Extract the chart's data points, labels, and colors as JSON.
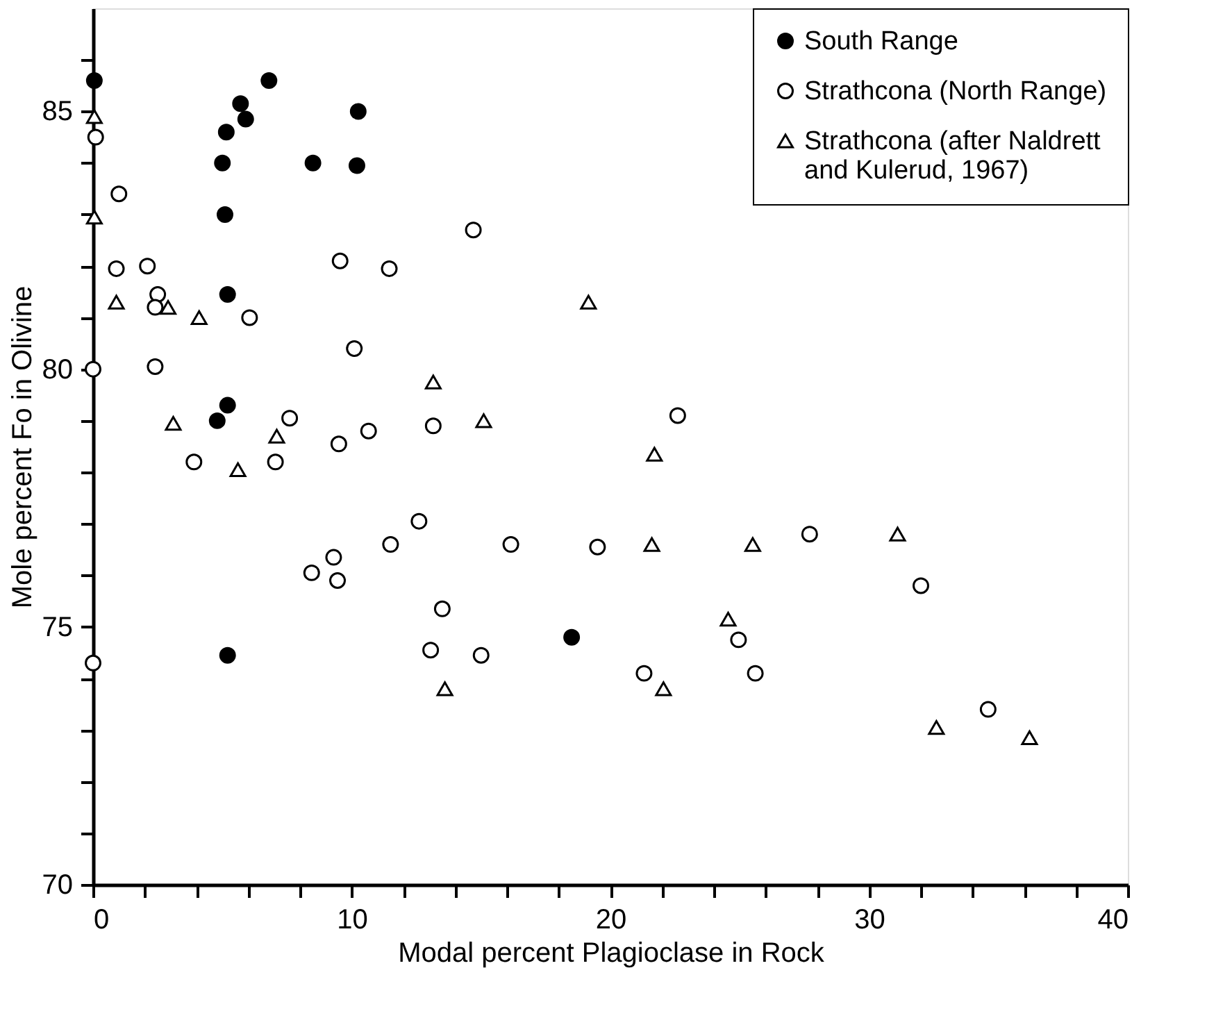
{
  "chart_data": {
    "type": "scatter",
    "xlabel": "Modal percent Plagioclase in Rock",
    "ylabel": "Mole percent Fo in Olivine",
    "xlim": [
      0,
      40
    ],
    "ylim": [
      70,
      87
    ],
    "xticks": [
      0,
      {
        "value": 2,
        "label": null
      },
      {
        "value": 4,
        "label": null
      },
      {
        "value": 6,
        "label": null
      },
      {
        "value": 8,
        "label": null
      },
      10,
      {
        "value": 12,
        "label": null
      },
      {
        "value": 14,
        "label": null
      },
      {
        "value": 16,
        "label": null
      },
      {
        "value": 18,
        "label": null
      },
      20,
      {
        "value": 22,
        "label": null
      },
      {
        "value": 24,
        "label": null
      },
      {
        "value": 26,
        "label": null
      },
      {
        "value": 28,
        "label": null
      },
      30,
      {
        "value": 32,
        "label": null
      },
      {
        "value": 34,
        "label": null
      },
      {
        "value": 36,
        "label": null
      },
      {
        "value": 38,
        "label": null
      },
      40
    ],
    "yticks": [
      70,
      {
        "value": 71,
        "label": null
      },
      {
        "value": 72,
        "label": null
      },
      {
        "value": 73,
        "label": null
      },
      {
        "value": 74,
        "label": null
      },
      75,
      {
        "value": 76,
        "label": null
      },
      {
        "value": 77,
        "label": null
      },
      {
        "value": 78,
        "label": null
      },
      {
        "value": 79,
        "label": null
      },
      80,
      {
        "value": 81,
        "label": null
      },
      {
        "value": 82,
        "label": null
      },
      {
        "value": 83,
        "label": null
      },
      {
        "value": 84,
        "label": null
      },
      85,
      {
        "value": 86,
        "label": null
      }
    ],
    "grid": false,
    "legend": "top right",
    "series": [
      {
        "name": "South Range",
        "color": "#000000",
        "marker": "circle",
        "x": [
          0.05,
          6.8,
          5.7,
          5.9,
          5.15,
          10.25,
          5.0,
          8.5,
          10.2,
          5.1,
          5.2,
          5.2,
          4.8,
          5.2,
          18.5
        ],
        "values": [
          85.6,
          85.6,
          85.15,
          84.85,
          84.6,
          85.0,
          84.0,
          84.0,
          83.95,
          83.0,
          81.45,
          79.3,
          79.0,
          74.45,
          74.8
        ]
      },
      {
        "name": "Strathcona (North Range)",
        "color": "#ffffff",
        "marker": "circle",
        "x": [
          0.1,
          1.0,
          0.9,
          2.1,
          2.5,
          2.4,
          6.05,
          9.55,
          11.45,
          14.7,
          2.4,
          0,
          10.1,
          7.6,
          3.9,
          7.05,
          9.5,
          10.65,
          13.15,
          22.6,
          12.6,
          11.5,
          16.15,
          19.5,
          8.45,
          9.3,
          9.45,
          13.5,
          13.05,
          15.0,
          0,
          27.7,
          32.0,
          24.95,
          25.6,
          21.3,
          34.6
        ],
        "values": [
          84.5,
          83.4,
          81.95,
          82.0,
          81.45,
          81.2,
          81.0,
          82.1,
          81.95,
          82.7,
          80.05,
          80.0,
          80.4,
          79.05,
          78.2,
          78.2,
          78.55,
          78.8,
          78.9,
          79.1,
          77.05,
          76.6,
          76.6,
          76.55,
          76.05,
          76.35,
          75.9,
          75.35,
          74.55,
          74.45,
          74.3,
          76.8,
          75.8,
          74.75,
          74.1,
          74.1,
          73.4
        ]
      },
      {
        "name": "Strathcona (after  Naldrett and Kulerud, 1967)",
        "color": "#ffffff",
        "marker": "triangle",
        "x": [
          0.05,
          0.05,
          0.9,
          2.9,
          4.1,
          19.15,
          13.15,
          15.1,
          3.1,
          7.1,
          5.6,
          21.7,
          21.6,
          25.5,
          31.1,
          24.55,
          22.05,
          13.6,
          32.6,
          36.2
        ],
        "values": [
          84.9,
          82.95,
          81.3,
          81.2,
          81.0,
          81.3,
          79.75,
          79.0,
          78.95,
          78.7,
          78.05,
          78.35,
          76.6,
          76.6,
          76.8,
          75.15,
          73.8,
          73.8,
          73.05,
          72.85
        ]
      }
    ]
  }
}
